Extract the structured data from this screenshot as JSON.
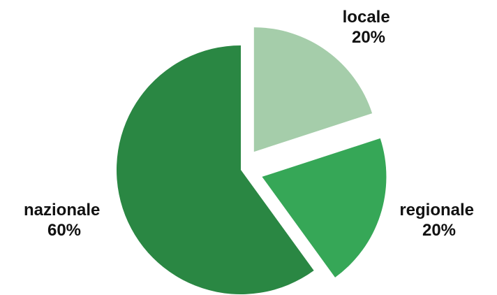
{
  "chart_data": {
    "type": "pie",
    "title": "",
    "slices": [
      {
        "label": "locale",
        "value": 20,
        "display": "20%",
        "color": "#a5cdaa",
        "exploded": true
      },
      {
        "label": "regionale",
        "value": 20,
        "display": "20%",
        "color": "#36a757",
        "exploded": true
      },
      {
        "label": "nazionale",
        "value": 60,
        "display": "60%",
        "color": "#2a8743",
        "exploded": false
      }
    ],
    "start_angle_deg": 0,
    "direction": "clockwise",
    "legend": "none"
  }
}
